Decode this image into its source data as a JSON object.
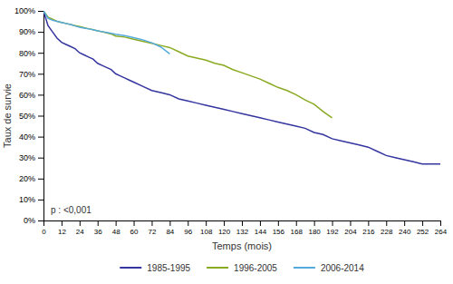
{
  "chart_data": {
    "type": "line",
    "xlabel": "Temps (mois)",
    "ylabel": "Taux de survie",
    "annotation": "p : <0,001",
    "grid": false,
    "legend": "bottom",
    "xlim": [
      0,
      264
    ],
    "ylim": [
      0.0,
      1.0
    ],
    "xticks": [
      0,
      12,
      24,
      36,
      48,
      60,
      72,
      84,
      96,
      108,
      120,
      132,
      144,
      156,
      168,
      180,
      192,
      204,
      216,
      228,
      240,
      252,
      264
    ],
    "yticks": [
      {
        "value": 0.0,
        "label": "0%"
      },
      {
        "value": 0.1,
        "label": "10%"
      },
      {
        "value": 0.2,
        "label": "20%"
      },
      {
        "value": 0.3,
        "label": "30%"
      },
      {
        "value": 0.4,
        "label": "40%"
      },
      {
        "value": 0.5,
        "label": "50%"
      },
      {
        "value": 0.6,
        "label": "60%"
      },
      {
        "value": 0.7,
        "label": "70%"
      },
      {
        "value": 0.8,
        "label": "80%"
      },
      {
        "value": 0.9,
        "label": "90%"
      },
      {
        "value": 1.0,
        "label": "100%"
      }
    ],
    "series": [
      {
        "name": "1985-1995",
        "color": "#3535a0",
        "x": [
          0,
          3,
          6,
          9,
          12,
          15,
          18,
          21,
          24,
          27,
          30,
          33,
          36,
          39,
          42,
          45,
          48,
          51,
          54,
          57,
          60,
          66,
          72,
          78,
          84,
          90,
          96,
          102,
          108,
          114,
          120,
          126,
          132,
          138,
          144,
          150,
          156,
          162,
          168,
          174,
          180,
          186,
          192,
          198,
          204,
          210,
          216,
          222,
          228,
          234,
          240,
          246,
          252,
          258,
          264
        ],
        "values": [
          1.0,
          0.93,
          0.9,
          0.87,
          0.85,
          0.84,
          0.83,
          0.82,
          0.8,
          0.79,
          0.78,
          0.77,
          0.75,
          0.74,
          0.73,
          0.72,
          0.7,
          0.69,
          0.68,
          0.67,
          0.66,
          0.64,
          0.62,
          0.61,
          0.6,
          0.58,
          0.57,
          0.56,
          0.55,
          0.54,
          0.53,
          0.52,
          0.51,
          0.5,
          0.49,
          0.48,
          0.47,
          0.46,
          0.45,
          0.44,
          0.42,
          0.41,
          0.39,
          0.38,
          0.37,
          0.36,
          0.35,
          0.33,
          0.31,
          0.3,
          0.29,
          0.28,
          0.27,
          0.27,
          0.27
        ]
      },
      {
        "name": "1996-2005",
        "color": "#8aaa22",
        "x": [
          0,
          3,
          6,
          9,
          12,
          15,
          18,
          21,
          24,
          27,
          30,
          33,
          36,
          39,
          42,
          45,
          48,
          54,
          60,
          66,
          72,
          78,
          84,
          90,
          96,
          102,
          108,
          114,
          120,
          126,
          132,
          138,
          144,
          150,
          156,
          162,
          168,
          174,
          180,
          186,
          192
        ],
        "values": [
          1.0,
          0.97,
          0.96,
          0.95,
          0.945,
          0.94,
          0.935,
          0.93,
          0.925,
          0.92,
          0.915,
          0.91,
          0.905,
          0.9,
          0.895,
          0.89,
          0.88,
          0.875,
          0.865,
          0.855,
          0.845,
          0.835,
          0.825,
          0.805,
          0.785,
          0.775,
          0.765,
          0.75,
          0.74,
          0.72,
          0.705,
          0.69,
          0.675,
          0.655,
          0.635,
          0.62,
          0.6,
          0.575,
          0.555,
          0.52,
          0.49
        ]
      },
      {
        "name": "2006-2014",
        "color": "#55aadd",
        "x": [
          0,
          3,
          6,
          9,
          12,
          15,
          18,
          21,
          24,
          27,
          30,
          33,
          36,
          39,
          42,
          45,
          48,
          54,
          60,
          66,
          72,
          78,
          84
        ],
        "values": [
          1.0,
          0.965,
          0.955,
          0.95,
          0.945,
          0.94,
          0.935,
          0.928,
          0.922,
          0.918,
          0.914,
          0.91,
          0.905,
          0.901,
          0.897,
          0.893,
          0.889,
          0.882,
          0.872,
          0.862,
          0.848,
          0.828,
          0.795
        ]
      }
    ]
  }
}
